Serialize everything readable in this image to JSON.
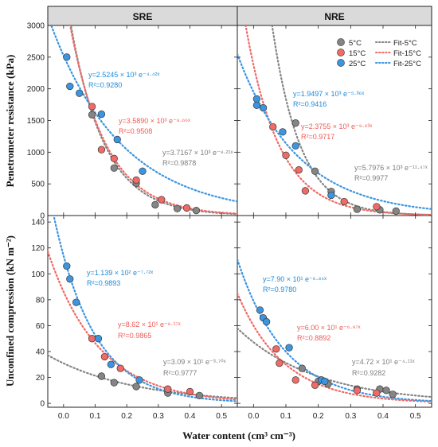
{
  "colors": {
    "5C": "#858585",
    "15C": "#ee6b66",
    "25C": "#3b95e0",
    "eq_25C": "#1f8ad8",
    "eq_15C": "#ee5a55",
    "eq_5C": "#7d7d7d",
    "strip": "#dadada"
  },
  "axes": {
    "xlabel": "Water content (cm³ cm⁻³)",
    "ylabel_top": "Penetrometer resistance (kPa)",
    "ylabel_bottom": "Unconfined compression (kN m⁻²)",
    "xlim": [
      -0.05,
      0.55
    ],
    "xticks": [
      "0.0",
      "0.1",
      "0.2",
      "0.3",
      "0.4",
      "0.5"
    ],
    "top_ylim": [
      0,
      3000
    ],
    "top_yticks": [
      "0",
      "500",
      "1000",
      "1500",
      "2000",
      "2500",
      "3000"
    ],
    "bottom_ylim": [
      -3,
      145
    ],
    "bottom_yticks": [
      "0",
      "20",
      "40",
      "60",
      "80",
      "100",
      "120",
      "140"
    ]
  },
  "columns": [
    "SRE",
    "NRE"
  ],
  "legend": [
    {
      "key": "5C",
      "label": "5°C",
      "kind": "point"
    },
    {
      "key": "15C",
      "label": "15°C",
      "kind": "point"
    },
    {
      "key": "25C",
      "label": "25°C",
      "kind": "point"
    },
    {
      "key": "5C",
      "label": "Fit-5°C",
      "kind": "line"
    },
    {
      "key": "15C",
      "label": "Fit-15°C",
      "kind": "line"
    },
    {
      "key": "25C",
      "label": "Fit-25°C",
      "kind": "line"
    }
  ],
  "chart_data": [
    {
      "type": "scatter",
      "panel": "SRE penetrometer resistance",
      "title": "SRE",
      "series": [
        {
          "name": "25°C",
          "points": [
            [
              0.01,
              2500
            ],
            [
              0.02,
              2040
            ],
            [
              0.05,
              1930
            ],
            [
              0.12,
              1600
            ],
            [
              0.17,
              1200
            ],
            [
              0.25,
              700
            ]
          ],
          "fit": {
            "a": 2524.5,
            "b": -4.42,
            "equation": "y=2.5245 × 10³ e⁻⁴·⁴²ˣ",
            "r2": "R²=0.9280"
          }
        },
        {
          "name": "15°C",
          "points": [
            [
              0.09,
              1720
            ],
            [
              0.12,
              1040
            ],
            [
              0.16,
              900
            ],
            [
              0.23,
              560
            ],
            [
              0.31,
              250
            ],
            [
              0.39,
              120
            ]
          ],
          "fit": {
            "a": 3589.0,
            "b": -8.66,
            "equation": "y=3.5890 × 10³ e⁻⁸·⁶⁶ˣ",
            "r2": "R²=0.9508"
          }
        },
        {
          "name": "5°C",
          "points": [
            [
              0.09,
              1590
            ],
            [
              0.16,
              750
            ],
            [
              0.23,
              510
            ],
            [
              0.29,
              170
            ],
            [
              0.36,
              110
            ],
            [
              0.42,
              80
            ]
          ],
          "fit": {
            "a": 3716.7,
            "b": -9.21,
            "equation": "y=3.7167 × 10³ e⁻⁹·²¹ˣ",
            "r2": "R²=0.9878"
          }
        }
      ]
    },
    {
      "type": "scatter",
      "panel": "NRE penetrometer resistance",
      "title": "NRE",
      "series": [
        {
          "name": "25°C",
          "points": [
            [
              0.01,
              1840
            ],
            [
              0.01,
              1740
            ],
            [
              0.03,
              1700
            ],
            [
              0.09,
              1320
            ],
            [
              0.13,
              1100
            ],
            [
              0.24,
              320
            ]
          ],
          "fit": {
            "a": 1949.7,
            "b": -5.36,
            "equation": "y=1.9497 × 10³ e⁻⁵·³⁶ˣ",
            "r2": "R²=0.9416"
          }
        },
        {
          "name": "15°C",
          "points": [
            [
              0.06,
              1400
            ],
            [
              0.1,
              950
            ],
            [
              0.14,
              720
            ],
            [
              0.16,
              390
            ],
            [
              0.28,
              220
            ],
            [
              0.38,
              140
            ]
          ],
          "fit": {
            "a": 2375.5,
            "b": -9.63,
            "equation": "y=2.3755 × 10³ e⁻⁹·⁶³ˣ",
            "r2": "R²=0.9717"
          }
        },
        {
          "name": "5°C",
          "points": [
            [
              0.13,
              1460
            ],
            [
              0.19,
              700
            ],
            [
              0.24,
              380
            ],
            [
              0.32,
              100
            ],
            [
              0.39,
              90
            ],
            [
              0.44,
              70
            ]
          ],
          "fit": {
            "a": 5797.6,
            "b": -11.47,
            "equation": "y=5.7976 × 10³ e⁻¹¹·⁴⁷ˣ",
            "r2": "R²=0.9977"
          }
        }
      ]
    },
    {
      "type": "scatter",
      "panel": "SRE unconfined compression",
      "series": [
        {
          "name": "25°C",
          "points": [
            [
              0.01,
              106
            ],
            [
              0.02,
              96
            ],
            [
              0.04,
              78
            ],
            [
              0.11,
              50
            ],
            [
              0.15,
              30
            ],
            [
              0.24,
              18
            ]
          ],
          "fit": {
            "a": 113.9,
            "b": -7.72,
            "equation": "y=1.139 × 10² e⁻⁷·⁷²ˣ",
            "r2": "R²=0.9893"
          }
        },
        {
          "name": "15°C",
          "points": [
            [
              0.09,
              50
            ],
            [
              0.13,
              36
            ],
            [
              0.18,
              27
            ],
            [
              0.33,
              11
            ],
            [
              0.4,
              9
            ]
          ],
          "fit": {
            "a": 86.2,
            "b": -6.17,
            "equation": "y=8.62 × 10¹ e⁻⁶·¹⁷ˣ",
            "r2": "R²=0.9865"
          }
        },
        {
          "name": "5°C",
          "points": [
            [
              0.12,
              21
            ],
            [
              0.16,
              16
            ],
            [
              0.23,
              13
            ],
            [
              0.33,
              8
            ],
            [
              0.43,
              6
            ]
          ],
          "fit": {
            "a": 30.9,
            "b": -3.7,
            "equation": "y=3.09 × 10¹ e⁻³·⁷⁰ˣ",
            "r2": "R²=0.9777"
          }
        }
      ]
    },
    {
      "type": "scatter",
      "panel": "NRE unconfined compression",
      "series": [
        {
          "name": "25°C",
          "points": [
            [
              0.02,
              72
            ],
            [
              0.03,
              66
            ],
            [
              0.04,
              63
            ],
            [
              0.11,
              43
            ],
            [
              0.21,
              18
            ],
            [
              0.22,
              17
            ]
          ],
          "fit": {
            "a": 79.0,
            "b": -6.84,
            "equation": "y=7.90 × 10¹ e⁻⁶·⁸⁴ˣ",
            "r2": "R²=0.9780"
          }
        },
        {
          "name": "15°C",
          "points": [
            [
              0.07,
              42
            ],
            [
              0.08,
              31
            ],
            [
              0.13,
              18
            ],
            [
              0.19,
              14
            ],
            [
              0.32,
              10
            ],
            [
              0.38,
              8
            ]
          ],
          "fit": {
            "a": 60.0,
            "b": -6.97,
            "equation": "y=6.00 × 10¹ e⁻⁶·⁹⁷ˣ",
            "r2": "R²=0.8892"
          }
        },
        {
          "name": "5°C",
          "points": [
            [
              0.15,
              27
            ],
            [
              0.2,
              17
            ],
            [
              0.23,
              15
            ],
            [
              0.32,
              11
            ],
            [
              0.39,
              11
            ],
            [
              0.41,
              10
            ],
            [
              0.43,
              7
            ]
          ],
          "fit": {
            "a": 47.2,
            "b": -4.11,
            "equation": "y=4.72 × 10¹ e⁻⁴·¹¹ˣ",
            "r2": "R²=0.9282"
          }
        }
      ]
    }
  ]
}
